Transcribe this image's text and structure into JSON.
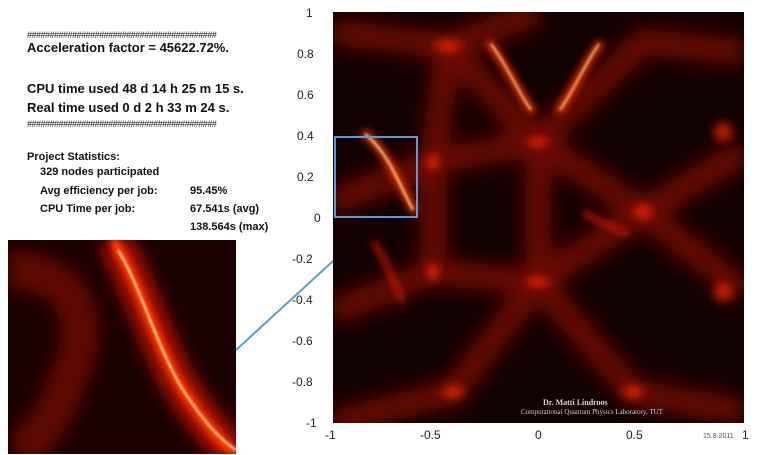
{
  "stats": {
    "hash_line": "##########################################",
    "acceleration": "Acceleration factor = 45622.72%.",
    "cpu_time": "CPU time used 48 d 14 h 25 m 15 s.",
    "real_time": "Real time used 0 d 2 h 33 m 24 s.",
    "project_title": "Project Statistics:",
    "nodes": "329 nodes participated",
    "avg_eff_label": "Avg efficiency per job:",
    "avg_eff_value": "95.45%",
    "cpu_job_label": "CPU Time per job:",
    "cpu_job_avg": "67.541s (avg)",
    "cpu_job_max": "138.564s (max)"
  },
  "plot": {
    "x_ticks": [
      "-1",
      "-0.5",
      "0",
      "0.5",
      "1"
    ],
    "y_ticks": [
      "1",
      "0.8",
      "0.6",
      "0.4",
      "0.2",
      "0",
      "-0.2",
      "-0.4",
      "-0.6",
      "-0.8",
      "-1"
    ],
    "credit_name": "Dr. Matti Lindroos",
    "credit_lab": "Computational Quantum Physics Laboratory, TUT",
    "date": "15.8.2011",
    "colors": {
      "background": "#120000",
      "glow": "#ff2a00",
      "bright": "#fff6a0",
      "zoom_box": "#5b9bd5"
    }
  }
}
